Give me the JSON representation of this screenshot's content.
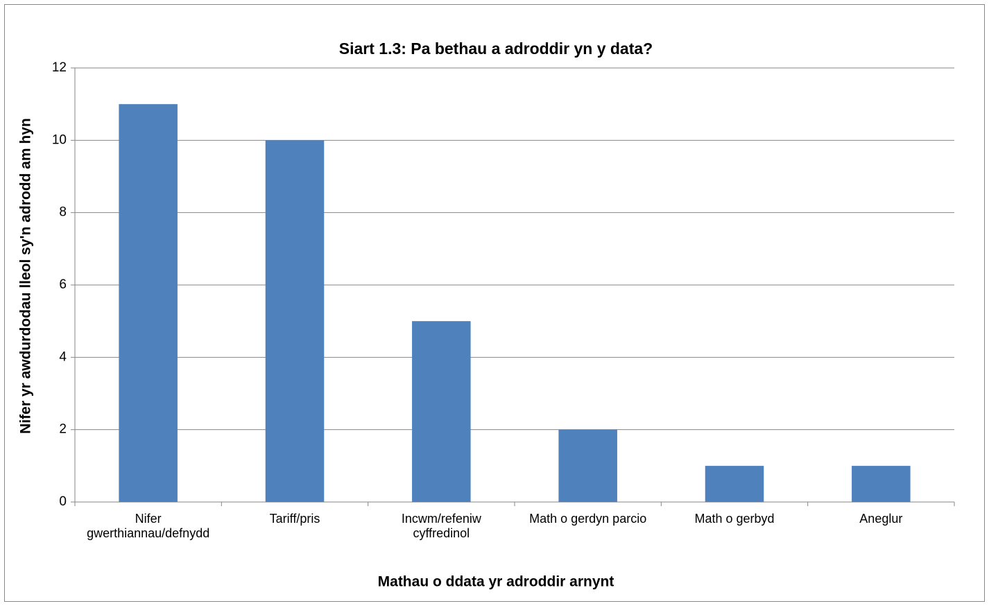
{
  "chart_data": {
    "type": "bar",
    "title": "Siart 1.3: Pa bethau a adroddir yn y data?",
    "x_label": "Mathau o ddata yr adroddir arnynt",
    "y_label": "Nifer yr awdurdodau lleol sy'n adrodd am hyn",
    "categories": [
      "Nifer\ngwerthiannau/defnydd",
      "Tariff/pris",
      "Incwm/refeniw\ncyffredinol",
      "Math o gerdyn parcio",
      "Math o gerbyd",
      "Aneglur"
    ],
    "values": [
      11,
      10,
      5,
      2,
      1,
      1
    ],
    "color": "#4f81bd",
    "ylim": [
      0,
      12
    ],
    "yticks": [
      0,
      2,
      4,
      6,
      8,
      10,
      12
    ],
    "grid": true
  }
}
